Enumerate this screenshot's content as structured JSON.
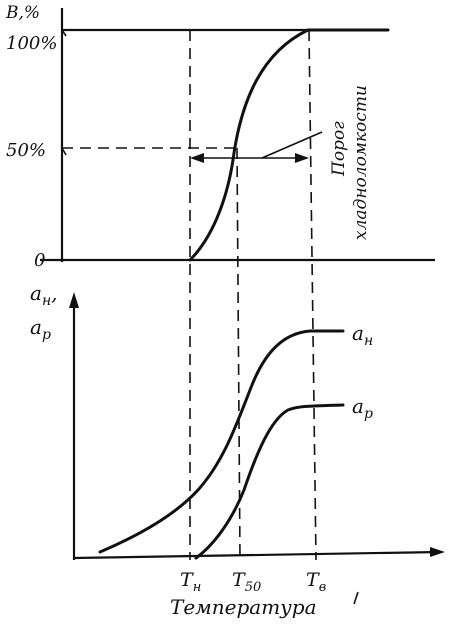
{
  "top_chart": {
    "y_axis_label": "В,%",
    "y_ticks": [
      "100%",
      "50%",
      "0"
    ],
    "annotation_line1": "Порог",
    "annotation_line2": "хладноломкости"
  },
  "bottom_chart": {
    "y_axis_label_line1": "a",
    "y_axis_label_line1_sub": "н",
    "y_axis_label_line1_tail": ",",
    "y_axis_label_line2": "a",
    "y_axis_label_line2_sub": "р",
    "curve_an_label": "a",
    "curve_an_sub": "н",
    "curve_ap_label": "a",
    "curve_ap_sub": "р",
    "x_ticks": [
      {
        "main": "T",
        "sub": "н"
      },
      {
        "main": "T",
        "sub": "50"
      },
      {
        "main": "T",
        "sub": "в"
      }
    ],
    "x_axis_label": "Температура"
  }
}
